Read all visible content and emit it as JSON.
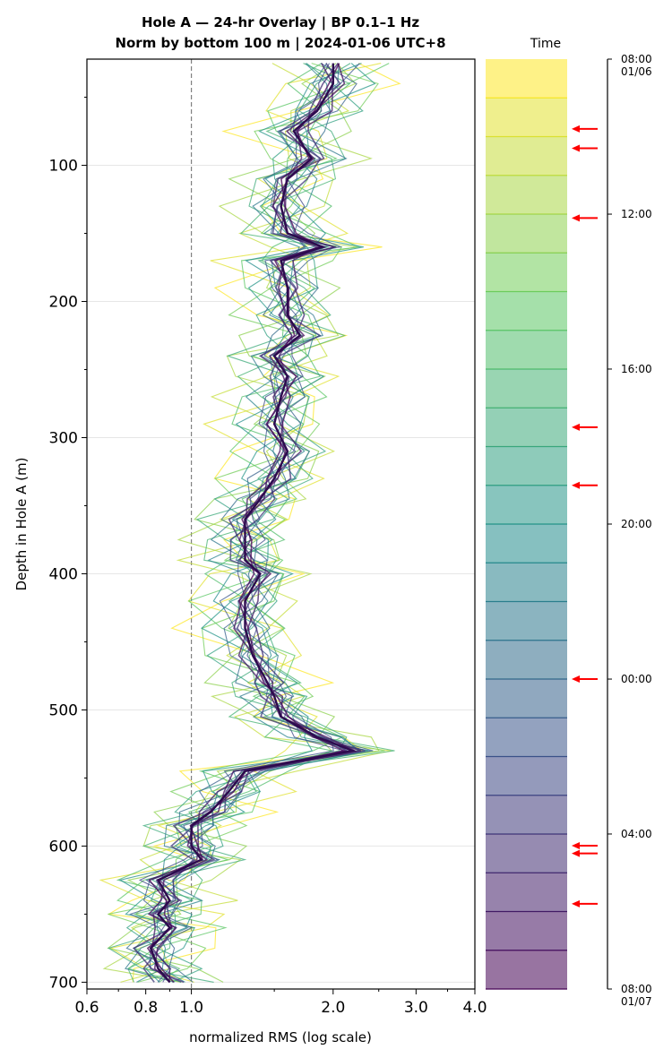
{
  "chart_data": {
    "type": "line",
    "title": "Hole A — 24-hr Overlay  |  BP 0.1–1 Hz",
    "subtitle": "Norm by bottom 100 m  |  2024-01-06 UTC+8",
    "xlabel": "normalized RMS  (log scale)",
    "ylabel": "Depth in Hole A (m)",
    "x_scale": "log",
    "xlim": [
      0.6,
      4.0
    ],
    "ylim": [
      705,
      22
    ],
    "x_ticks": [
      "0.6",
      "0.8",
      "1.0",
      "2.0",
      "3.0",
      "4.0"
    ],
    "x_tick_values": [
      0.6,
      0.8,
      1.0,
      2.0,
      3.0,
      4.0
    ],
    "y_ticks": [
      "100",
      "200",
      "300",
      "400",
      "500",
      "600",
      "700"
    ],
    "y_tick_values": [
      100,
      200,
      300,
      400,
      500,
      600,
      700
    ],
    "reference_line_x": 1.0,
    "grid": "horizontal",
    "profile_depths": [
      25,
      40,
      60,
      75,
      95,
      110,
      130,
      150,
      160,
      170,
      190,
      210,
      225,
      240,
      255,
      270,
      290,
      310,
      330,
      345,
      360,
      375,
      390,
      400,
      420,
      440,
      460,
      480,
      490,
      505,
      520,
      530,
      545,
      560,
      575,
      585,
      600,
      610,
      625,
      640,
      650,
      660,
      675,
      690,
      700
    ],
    "median_profile": [
      2.0,
      2.0,
      1.85,
      1.65,
      1.8,
      1.6,
      1.55,
      1.6,
      1.9,
      1.55,
      1.6,
      1.6,
      1.7,
      1.5,
      1.6,
      1.55,
      1.5,
      1.6,
      1.5,
      1.4,
      1.3,
      1.3,
      1.3,
      1.4,
      1.3,
      1.3,
      1.35,
      1.45,
      1.5,
      1.55,
      1.85,
      2.2,
      1.3,
      1.2,
      1.1,
      1.0,
      1.0,
      1.05,
      0.85,
      0.9,
      0.85,
      0.9,
      0.82,
      0.85,
      0.9
    ],
    "series_note_count": 24,
    "colorbar": {
      "title": "Time",
      "ticks": [
        "08:00\n01/06",
        "12:00",
        "16:00",
        "20:00",
        "00:00",
        "04:00",
        "08:00\n01/07"
      ],
      "tick_fractions": [
        0,
        0.1667,
        0.3333,
        0.5,
        0.6667,
        0.8333,
        1.0
      ],
      "segments": 24,
      "flagged_hours": [
        1.8,
        2.3,
        4.1,
        9.5,
        11.0,
        16.0,
        20.3,
        20.5,
        21.8
      ]
    },
    "palette": [
      "#fde725",
      "#5ec962",
      "#21918c",
      "#3b528b",
      "#440154"
    ]
  }
}
